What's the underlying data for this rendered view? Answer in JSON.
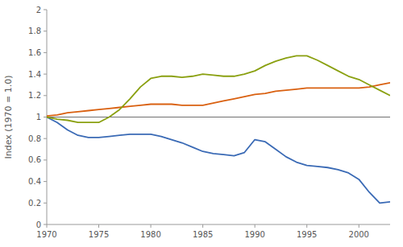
{
  "chart_data": {
    "type": "line",
    "ylabel": "Index (1970 = 1.0)",
    "x": [
      1970,
      1971,
      1972,
      1973,
      1974,
      1975,
      1976,
      1977,
      1978,
      1979,
      1980,
      1981,
      1982,
      1983,
      1984,
      1985,
      1986,
      1987,
      1988,
      1989,
      1990,
      1991,
      1992,
      1993,
      1994,
      1995,
      1996,
      1997,
      1998,
      1999,
      2000,
      2001,
      2002,
      2003
    ],
    "series": [
      {
        "color": "#3A6AB5",
        "values": [
          1.0,
          0.95,
          0.88,
          0.83,
          0.81,
          0.81,
          0.82,
          0.83,
          0.84,
          0.84,
          0.84,
          0.82,
          0.79,
          0.76,
          0.72,
          0.68,
          0.66,
          0.65,
          0.64,
          0.67,
          0.79,
          0.77,
          0.7,
          0.63,
          0.58,
          0.55,
          0.54,
          0.53,
          0.51,
          0.48,
          0.42,
          0.3,
          0.2,
          0.21
        ]
      },
      {
        "color": "#D96010",
        "values": [
          1.01,
          1.02,
          1.04,
          1.05,
          1.06,
          1.07,
          1.08,
          1.09,
          1.1,
          1.11,
          1.12,
          1.12,
          1.12,
          1.11,
          1.11,
          1.11,
          1.13,
          1.15,
          1.17,
          1.19,
          1.21,
          1.22,
          1.24,
          1.25,
          1.26,
          1.27,
          1.27,
          1.27,
          1.27,
          1.27,
          1.27,
          1.28,
          1.3,
          1.32
        ]
      },
      {
        "color": "#8AA010",
        "values": [
          1.0,
          0.98,
          0.97,
          0.95,
          0.95,
          0.95,
          1.0,
          1.07,
          1.17,
          1.28,
          1.36,
          1.38,
          1.38,
          1.37,
          1.38,
          1.4,
          1.39,
          1.38,
          1.38,
          1.4,
          1.43,
          1.48,
          1.52,
          1.55,
          1.57,
          1.57,
          1.53,
          1.48,
          1.43,
          1.38,
          1.35,
          1.3,
          1.25,
          1.2
        ]
      }
    ],
    "reference_line": {
      "value": 1,
      "color": "#707070"
    },
    "xlim": [
      1970,
      2003
    ],
    "ylim": [
      0,
      2
    ],
    "xticks": [
      1970,
      1975,
      1980,
      1985,
      1990,
      1995,
      2000
    ],
    "yticks": [
      0,
      0.2,
      0.4,
      0.6,
      0.8,
      1,
      1.2,
      1.4,
      1.6,
      1.8,
      2
    ],
    "grid": false
  }
}
